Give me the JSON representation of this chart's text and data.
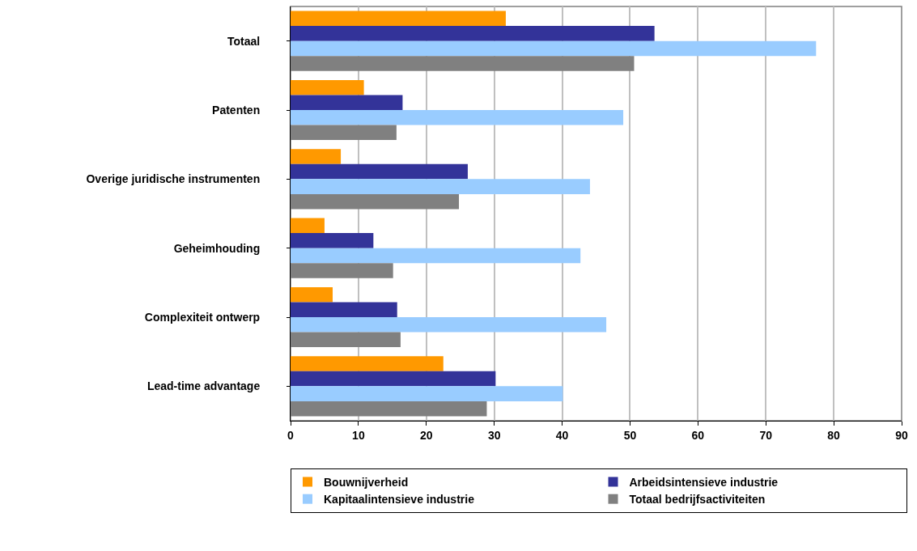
{
  "chart_data": {
    "type": "bar",
    "orientation": "horizontal",
    "categories": [
      "Totaal",
      "Patenten",
      "Overige juridische instrumenten",
      "Geheimhouding",
      "Complexiteit ontwerp",
      "Lead-time advantage"
    ],
    "series": [
      {
        "name": "Bouwnijverheid",
        "color": "#ff9900",
        "values": [
          31.7,
          10.8,
          7.4,
          5.0,
          6.2,
          22.5
        ]
      },
      {
        "name": "Arbeidsintensieve industrie",
        "color": "#333399",
        "values": [
          53.6,
          16.5,
          26.1,
          12.2,
          15.7,
          30.2
        ]
      },
      {
        "name": "Kapitaalintensieve industrie",
        "color": "#99ccff",
        "values": [
          77.4,
          49.0,
          44.1,
          42.7,
          46.5,
          40.1
        ]
      },
      {
        "name": "Totaal bedrijfsactiviteiten",
        "color": "#808080",
        "values": [
          50.6,
          15.6,
          24.8,
          15.1,
          16.2,
          28.9
        ]
      }
    ],
    "xlim": [
      0,
      90
    ],
    "xticks": [
      0,
      10,
      20,
      30,
      40,
      50,
      60,
      70,
      80,
      90
    ],
    "grid": "x",
    "legend": "bottom"
  }
}
